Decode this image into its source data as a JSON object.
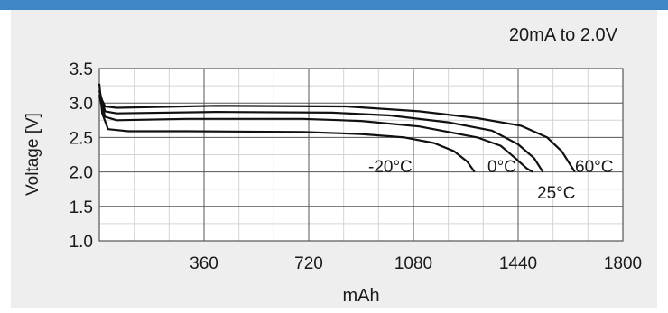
{
  "colors": {
    "header_bar": "#3f86c6",
    "panel": "#eeeeee",
    "plot_bg": "#ffffff",
    "grid": "#d4d4d4",
    "grid_major": "#555555",
    "curve": "#111111"
  },
  "chart_data": {
    "type": "line",
    "title": "20mA to 2.0V",
    "xlabel": "mAh",
    "ylabel": "Voltage [V]",
    "xlim": [
      0,
      1800
    ],
    "ylim": [
      1.0,
      3.5
    ],
    "x_ticks": [
      "360",
      "720",
      "1080",
      "1440",
      "1800"
    ],
    "y_ticks": [
      "1.0",
      "1.5",
      "2.0",
      "2.5",
      "3.0",
      "3.5"
    ],
    "grid": true,
    "series": [
      {
        "name": "-20°C",
        "points": [
          [
            0,
            3.28
          ],
          [
            10,
            2.85
          ],
          [
            30,
            2.62
          ],
          [
            100,
            2.59
          ],
          [
            300,
            2.59
          ],
          [
            700,
            2.58
          ],
          [
            900,
            2.55
          ],
          [
            1050,
            2.5
          ],
          [
            1150,
            2.42
          ],
          [
            1220,
            2.3
          ],
          [
            1265,
            2.15
          ],
          [
            1290,
            2.0
          ]
        ]
      },
      {
        "name": "25°C",
        "points": [
          [
            0,
            3.1
          ],
          [
            20,
            2.8
          ],
          [
            60,
            2.75
          ],
          [
            300,
            2.77
          ],
          [
            700,
            2.77
          ],
          [
            900,
            2.74
          ],
          [
            1100,
            2.66
          ],
          [
            1300,
            2.5
          ],
          [
            1380,
            2.38
          ],
          [
            1430,
            2.2
          ],
          [
            1470,
            2.05
          ],
          [
            1490,
            2.0
          ]
        ]
      },
      {
        "name": "0°C",
        "points": [
          [
            0,
            3.18
          ],
          [
            20,
            2.88
          ],
          [
            60,
            2.85
          ],
          [
            400,
            2.87
          ],
          [
            800,
            2.86
          ],
          [
            1000,
            2.82
          ],
          [
            1200,
            2.72
          ],
          [
            1350,
            2.6
          ],
          [
            1440,
            2.4
          ],
          [
            1495,
            2.2
          ],
          [
            1525,
            2.0
          ]
        ]
      },
      {
        "name": "60°C",
        "points": [
          [
            0,
            3.12
          ],
          [
            20,
            2.95
          ],
          [
            60,
            2.93
          ],
          [
            400,
            2.96
          ],
          [
            850,
            2.95
          ],
          [
            1100,
            2.88
          ],
          [
            1300,
            2.78
          ],
          [
            1450,
            2.67
          ],
          [
            1540,
            2.5
          ],
          [
            1590,
            2.3
          ],
          [
            1620,
            2.1
          ],
          [
            1635,
            2.0
          ]
        ]
      }
    ],
    "series_labels": {
      "-20°C": "-20°C",
      "0°C": "0°C",
      "25°C": "25°C",
      "60°C": "60°C"
    }
  }
}
